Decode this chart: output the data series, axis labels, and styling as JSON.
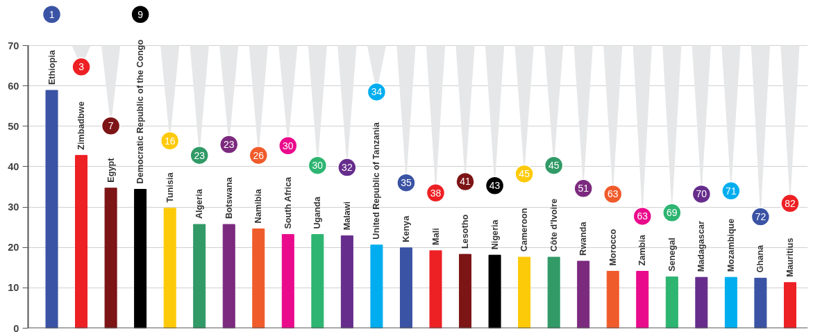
{
  "chart_data": {
    "type": "bar",
    "categories": [
      "Ethiopia",
      "Zimbadbwe",
      "Egypt",
      "Democratic Republic of the Congo",
      "Tunisia",
      "Algeria",
      "Botswana",
      "Namibia",
      "South Africa",
      "Uganda",
      "Malawi",
      "United Republic of Tanzania",
      "Kenya",
      "Mali",
      "Lesotho",
      "Nigeria",
      "Cameroon",
      "Côte d'Ivoire",
      "Rwanda",
      "Morocco",
      "Zambia",
      "Senegal",
      "Madagascar",
      "Mozambique",
      "Ghana",
      "Mauritius"
    ],
    "values": [
      58.9,
      42.8,
      34.7,
      34.4,
      29.7,
      25.7,
      25.7,
      24.6,
      23.2,
      23.2,
      22.9,
      20.6,
      19.9,
      19.2,
      18.3,
      18.1,
      17.6,
      17.6,
      16.6,
      14.1,
      14.1,
      12.7,
      12.6,
      12.6,
      12.4,
      11.3
    ],
    "colors": [
      "#3a53a4",
      "#ed2024",
      "#7d1416",
      "#000000",
      "#fdca09",
      "#319a67",
      "#7b2a7e",
      "#f05b2b",
      "#ea0a8c",
      "#2db571",
      "#662d8c",
      "#00aeef",
      "#3a53a4",
      "#ed2024",
      "#7d1416",
      "#000000",
      "#fdca09",
      "#319a67",
      "#7b2a7e",
      "#f05b2b",
      "#ea0a8c",
      "#2db571",
      "#662d8c",
      "#00aeef",
      "#3a53a4",
      "#ed2024"
    ],
    "ylim": [
      0,
      70
    ],
    "yticks": [
      0,
      10,
      20,
      30,
      40,
      50,
      60,
      70
    ],
    "grid": "y",
    "annotations": [
      "1",
      {
        "text": "3",
        "x": "Zimbadbwe",
        "y": 64.7
      },
      {
        "text": "7",
        "x": "Egypt",
        "y": 50.1
      },
      "9",
      {
        "text": "16",
        "x": "Tunisia",
        "y": 46.4
      },
      {
        "text": "23",
        "x": "Algeria",
        "y": 42.8
      },
      {
        "text": "23",
        "x": "Botswana",
        "y": 45.5
      },
      {
        "text": "26",
        "x": "Namibia",
        "y": 42.8
      },
      {
        "text": "30",
        "x": "South Africa",
        "y": 45.2
      },
      {
        "text": "30",
        "x": "Uganda",
        "y": 40.3
      },
      {
        "text": "32",
        "x": "Malawi",
        "y": 39.8
      },
      {
        "text": "34",
        "x": "United Republic of Tanzania",
        "y": 58.5
      },
      {
        "text": "35",
        "x": "Kenya",
        "y": 36.0
      },
      {
        "text": "38",
        "x": "Mali",
        "y": 33.5
      },
      {
        "text": "41",
        "x": "Lesotho",
        "y": 36.3
      },
      {
        "text": "43",
        "x": "Nigeria",
        "y": 35.3
      },
      {
        "text": "45",
        "x": "Cameroon",
        "y": 38.2
      },
      {
        "text": "45",
        "x": "Côte d'Ivoire",
        "y": 40.3
      },
      {
        "text": "51",
        "x": "Rwanda",
        "y": 34.6
      },
      {
        "text": "63",
        "x": "Morocco",
        "y": 33.2
      },
      {
        "text": "63",
        "x": "Zambia",
        "y": 27.7
      },
      {
        "text": "69",
        "x": "Senegal",
        "y": 28.6
      },
      {
        "text": "70",
        "x": "Madagascar",
        "y": 33.2
      },
      {
        "text": "71",
        "x": "Mozambique",
        "y": 34.0
      },
      {
        "text": "72",
        "x": "Ghana",
        "y": 27.6
      },
      {
        "text": "82",
        "x": "Mauritius",
        "y": 30.9
      }
    ]
  }
}
